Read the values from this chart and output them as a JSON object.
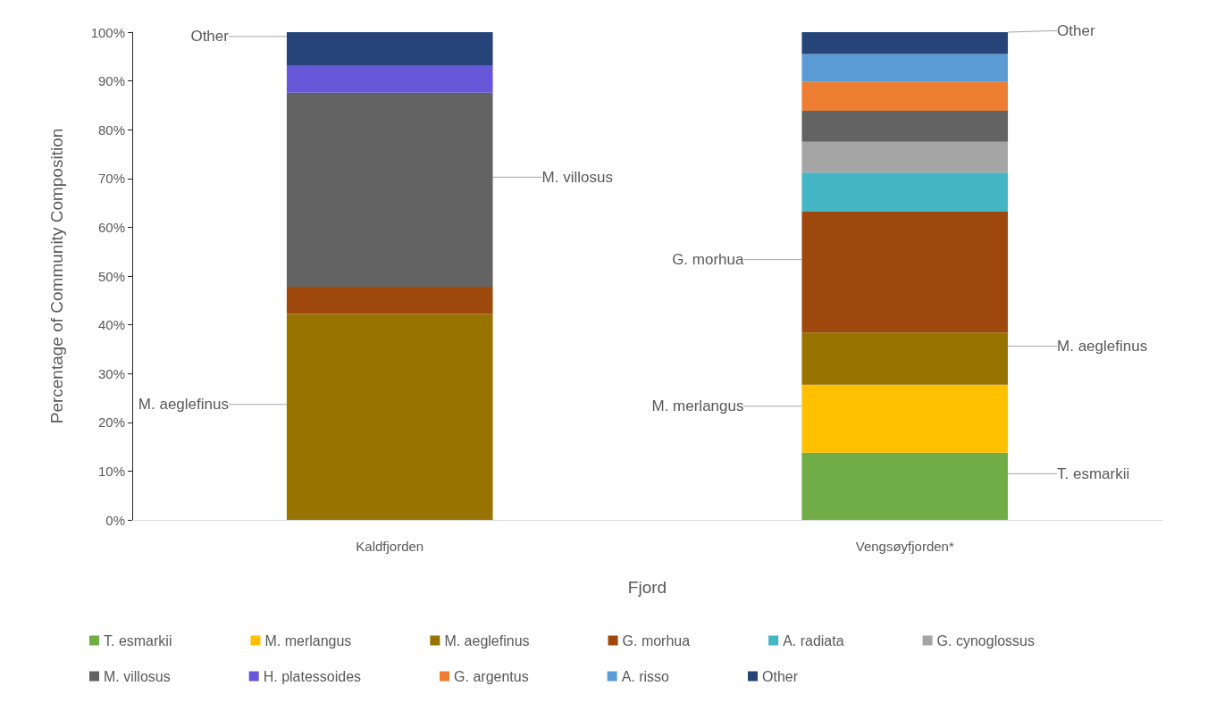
{
  "chart_data": {
    "type": "bar",
    "stacked": true,
    "xlabel": "Fjord",
    "ylabel": "Percentage of Community Composition",
    "categories": [
      "Kaldfjorden",
      "Vengsøyfjorden*"
    ],
    "series": [
      {
        "name": "T. esmarkii",
        "color": "#70ad47",
        "values": [
          0,
          13.8
        ],
        "value_labels": [
          null,
          "T. esmarkii"
        ]
      },
      {
        "name": "M. merlangus",
        "color": "#ffc000",
        "values": [
          0,
          13.9
        ],
        "value_labels": [
          null,
          "M. merlangus"
        ]
      },
      {
        "name": "M. aeglefinus",
        "color": "#997300",
        "values": [
          42.2,
          10.7
        ],
        "value_labels": [
          "M. aeglefinus",
          "M. aeglefinus"
        ]
      },
      {
        "name": "G. morhua",
        "color": "#9e480e",
        "values": [
          5.6,
          24.8
        ],
        "value_labels": [
          null,
          "G. morhua"
        ]
      },
      {
        "name": "A. radiata",
        "color": "#43b5c5",
        "values": [
          0,
          8.0
        ]
      },
      {
        "name": "G. cynoglossus",
        "color": "#a5a5a5",
        "values": [
          0,
          6.3
        ]
      },
      {
        "name": "M. villosus",
        "color": "#636363",
        "values": [
          39.8,
          6.4
        ],
        "value_labels": [
          "M. villosus",
          null
        ]
      },
      {
        "name": "H. platessoides",
        "color": "#6658d8",
        "values": [
          5.5,
          0
        ]
      },
      {
        "name": "G. argentus",
        "color": "#ed7d31",
        "values": [
          0,
          5.9
        ]
      },
      {
        "name": "A. risso",
        "color": "#5b9bd5",
        "values": [
          0,
          5.7
        ]
      },
      {
        "name": "Other",
        "color": "#264478",
        "values": [
          6.9,
          4.5
        ],
        "value_labels": [
          "Other",
          "Other"
        ]
      }
    ],
    "ylim": [
      0,
      100
    ],
    "yticks": [
      {
        "value": 0,
        "label": "0%"
      },
      {
        "value": 10,
        "label": "10%"
      },
      {
        "value": 20,
        "label": "20%"
      },
      {
        "value": 30,
        "label": "30%"
      },
      {
        "value": 40,
        "label": "40%"
      },
      {
        "value": 50,
        "label": "50%"
      },
      {
        "value": 60,
        "label": "60%"
      },
      {
        "value": 70,
        "label": "70%"
      },
      {
        "value": 80,
        "label": "80%"
      },
      {
        "value": 90,
        "label": "90%"
      },
      {
        "value": 100,
        "label": "100%"
      }
    ],
    "legend": "bottom"
  }
}
